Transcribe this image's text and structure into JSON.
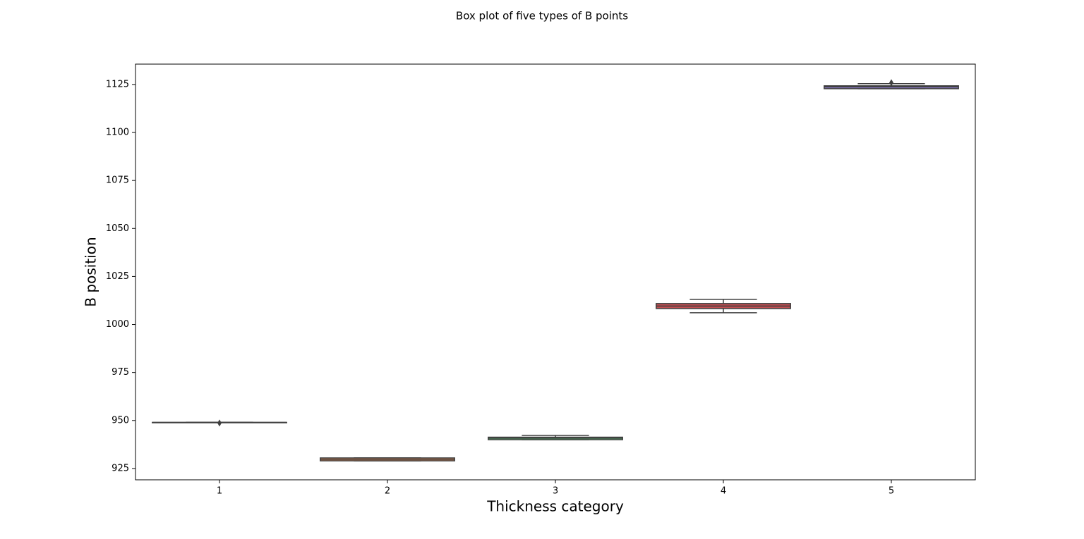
{
  "chart_data": {
    "type": "box",
    "title": "Box plot of five types of B points",
    "x_label": "Thickness category",
    "y_label": "B position",
    "categories": [
      "1",
      "2",
      "3",
      "4",
      "5"
    ],
    "boxes": [
      {
        "min": 949,
        "q1": 949,
        "median": 949,
        "q3": 949,
        "max": 949,
        "outliers": [
          948.7
        ],
        "color": "#4c72b0"
      },
      {
        "min": 929,
        "q1": 929,
        "median": 929.8,
        "q3": 930.5,
        "max": 930.5,
        "outliers": [],
        "color": "#dd8452"
      },
      {
        "min": 940,
        "q1": 940,
        "median": 940.8,
        "q3": 941.3,
        "max": 942.2,
        "outliers": [],
        "color": "#55a868"
      },
      {
        "min": 1006.1,
        "q1": 1008.3,
        "median": 1009.6,
        "q3": 1010.9,
        "max": 1013.1,
        "outliers": [],
        "color": "#c44e52"
      },
      {
        "min": 1122.8,
        "q1": 1122.8,
        "median": 1123.8,
        "q3": 1124.3,
        "max": 1125.4,
        "outliers": [
          1125.9
        ],
        "color": "#8172b3"
      }
    ],
    "ylim": [
      919.1,
      1135.6
    ],
    "yticks": [
      925,
      950,
      975,
      1000,
      1025,
      1050,
      1075,
      1100,
      1125
    ],
    "grid": false
  }
}
